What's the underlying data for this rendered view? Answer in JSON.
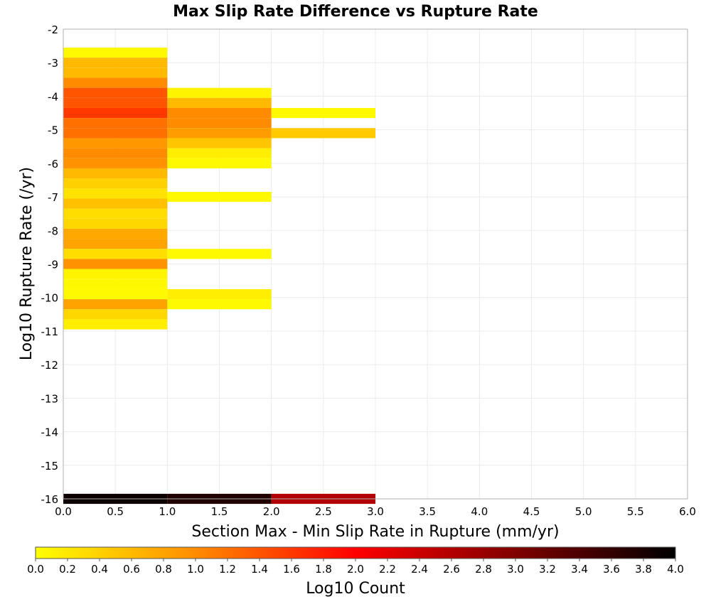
{
  "chart_data": {
    "type": "heatmap",
    "title": "Max Slip Rate Difference vs Rupture Rate",
    "xlabel": "Section Max - Min Slip Rate in Rupture (mm/yr)",
    "ylabel": "Log10 Rupture Rate (/yr)",
    "xlim": [
      0,
      6
    ],
    "ylim": [
      -16,
      -2
    ],
    "x_ticks": [
      "0.0",
      "0.5",
      "1.0",
      "1.5",
      "2.0",
      "2.5",
      "3.0",
      "3.5",
      "4.0",
      "4.5",
      "5.0",
      "5.5",
      "6.0"
    ],
    "y_ticks": [
      "-2",
      "-3",
      "-4",
      "-5",
      "-6",
      "-7",
      "-8",
      "-9",
      "-10",
      "-11",
      "-12",
      "-13",
      "-14",
      "-15",
      "-16"
    ],
    "grid": true,
    "bin_width_x": 1.0,
    "bin_height_y": 0.3,
    "colorbar": {
      "label": "Log10 Count",
      "range": [
        0,
        4
      ],
      "ticks": [
        "0.0",
        "0.2",
        "0.4",
        "0.6",
        "0.8",
        "1.0",
        "1.2",
        "1.4",
        "1.6",
        "1.8",
        "2.0",
        "2.2",
        "2.4",
        "2.6",
        "2.8",
        "3.0",
        "3.2",
        "3.4",
        "3.6",
        "3.8",
        "4.0"
      ],
      "placement": "bottom",
      "colors": [
        "#ffff00",
        "#ff8c00",
        "#ff0000",
        "#800000",
        "#000000"
      ]
    },
    "cells": [
      {
        "x": 0,
        "y": -2.7,
        "value": 0.05
      },
      {
        "x": 0,
        "y": -3.0,
        "value": 0.6
      },
      {
        "x": 0,
        "y": -3.3,
        "value": 0.6
      },
      {
        "x": 0,
        "y": -3.6,
        "value": 1.0
      },
      {
        "x": 0,
        "y": -3.9,
        "value": 1.4
      },
      {
        "x": 0,
        "y": -4.2,
        "value": 1.4
      },
      {
        "x": 0,
        "y": -4.5,
        "value": 1.6
      },
      {
        "x": 0,
        "y": -4.8,
        "value": 1.2
      },
      {
        "x": 0,
        "y": -5.1,
        "value": 1.2
      },
      {
        "x": 0,
        "y": -5.4,
        "value": 0.9
      },
      {
        "x": 0,
        "y": -5.7,
        "value": 1.0
      },
      {
        "x": 0,
        "y": -6.0,
        "value": 0.95
      },
      {
        "x": 0,
        "y": -6.3,
        "value": 0.6
      },
      {
        "x": 0,
        "y": -6.6,
        "value": 0.4
      },
      {
        "x": 0,
        "y": -6.9,
        "value": 0.25
      },
      {
        "x": 0,
        "y": -7.2,
        "value": 0.55
      },
      {
        "x": 0,
        "y": -7.5,
        "value": 0.3
      },
      {
        "x": 0,
        "y": -7.8,
        "value": 0.35
      },
      {
        "x": 0,
        "y": -8.1,
        "value": 0.75
      },
      {
        "x": 0,
        "y": -8.4,
        "value": 0.8
      },
      {
        "x": 0,
        "y": -8.7,
        "value": 0.3
      },
      {
        "x": 0,
        "y": -9.0,
        "value": 0.95
      },
      {
        "x": 0,
        "y": -9.3,
        "value": 0.1
      },
      {
        "x": 0,
        "y": -9.6,
        "value": 0.05
      },
      {
        "x": 0,
        "y": -9.9,
        "value": 0.05
      },
      {
        "x": 0,
        "y": -10.2,
        "value": 0.8
      },
      {
        "x": 0,
        "y": -10.5,
        "value": 0.35
      },
      {
        "x": 0,
        "y": -10.8,
        "value": 0.15
      },
      {
        "x": 1,
        "y": -3.9,
        "value": 0.1
      },
      {
        "x": 1,
        "y": -4.2,
        "value": 0.6
      },
      {
        "x": 1,
        "y": -4.5,
        "value": 1.0
      },
      {
        "x": 1,
        "y": -4.8,
        "value": 1.0
      },
      {
        "x": 1,
        "y": -5.1,
        "value": 0.85
      },
      {
        "x": 1,
        "y": -5.4,
        "value": 0.5
      },
      {
        "x": 1,
        "y": -5.7,
        "value": 0.15
      },
      {
        "x": 1,
        "y": -6.0,
        "value": 0.05
      },
      {
        "x": 1,
        "y": -7.0,
        "value": 0.05
      },
      {
        "x": 1,
        "y": -8.7,
        "value": 0.05
      },
      {
        "x": 1,
        "y": -9.9,
        "value": 0.15
      },
      {
        "x": 1,
        "y": -10.2,
        "value": 0.05
      },
      {
        "x": 2,
        "y": -4.5,
        "value": 0.05
      },
      {
        "x": 2,
        "y": -5.1,
        "value": 0.45
      },
      {
        "x": 0,
        "y": -16.0,
        "value": 3.9
      },
      {
        "x": 1,
        "y": -16.0,
        "value": 3.75
      },
      {
        "x": 2,
        "y": -16.0,
        "value": 2.6
      }
    ]
  }
}
